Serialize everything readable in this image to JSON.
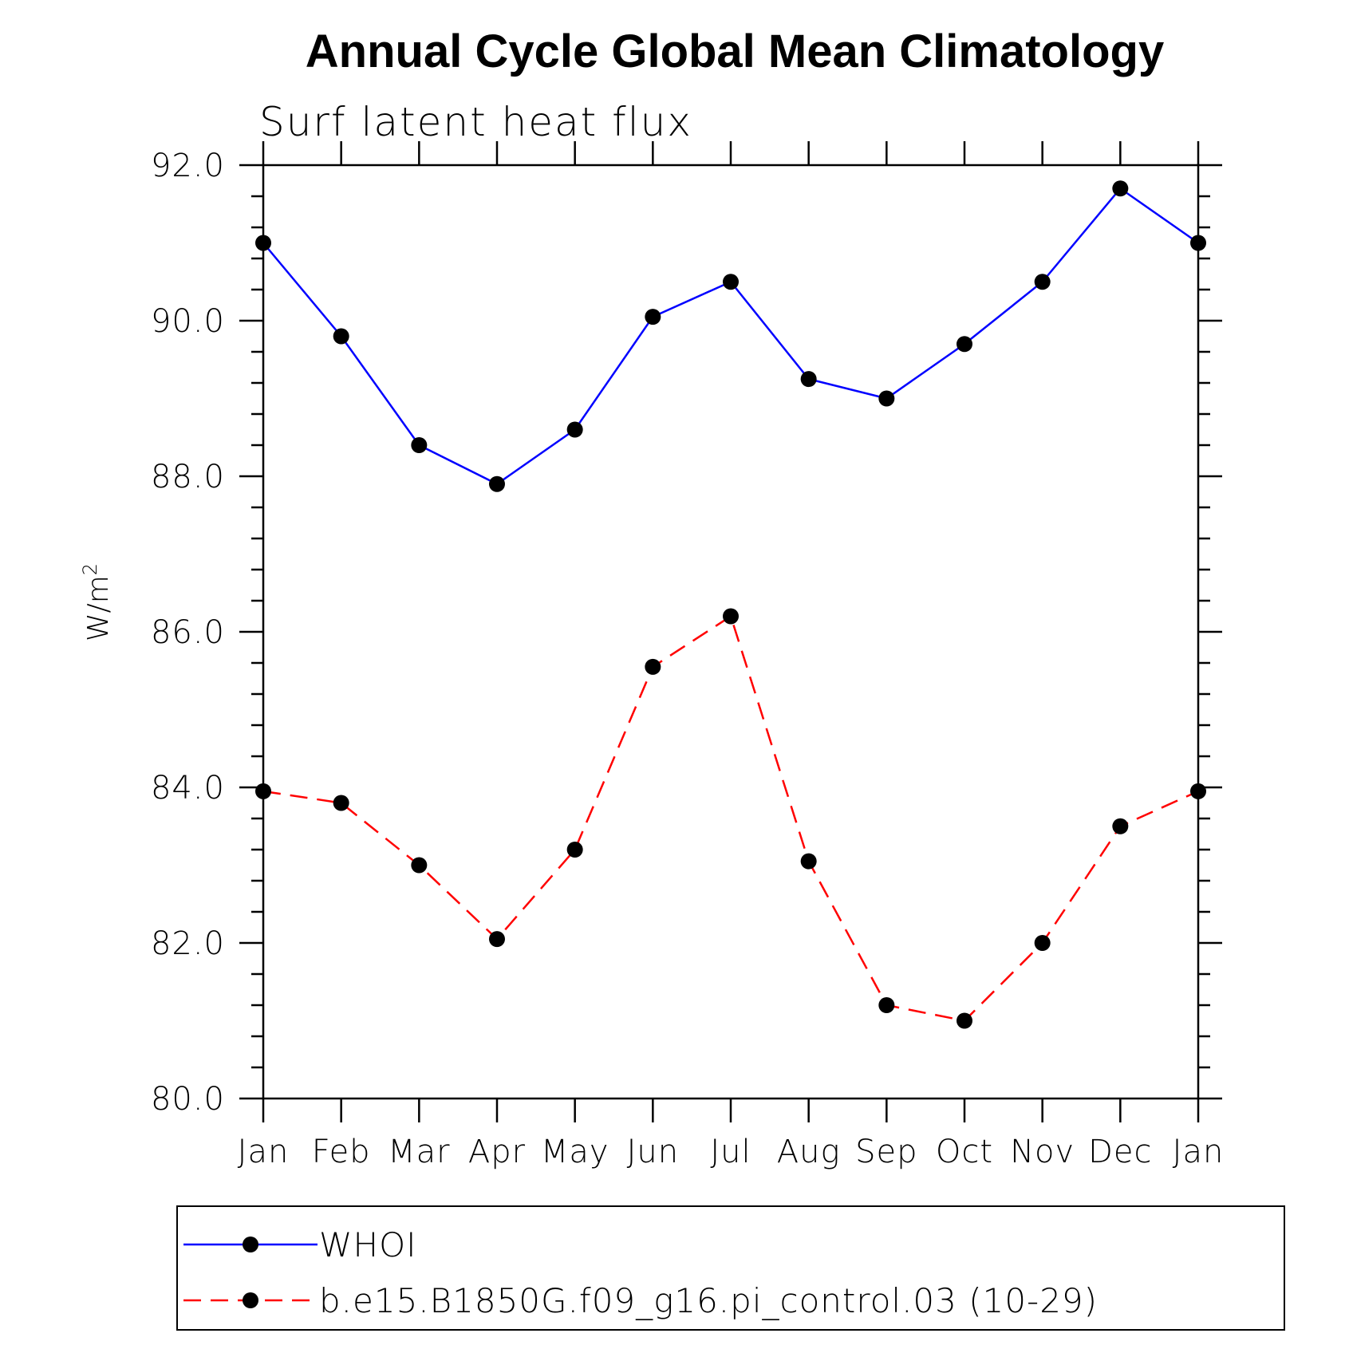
{
  "chart_data": {
    "type": "line",
    "title": "Annual Cycle Global Mean Climatology",
    "subtitle": "Surf latent heat flux",
    "ylabel": "W/m",
    "ylabel_superscript": "2",
    "xlabel": "",
    "categories": [
      "Jan",
      "Feb",
      "Mar",
      "Apr",
      "May",
      "Jun",
      "Jul",
      "Aug",
      "Sep",
      "Oct",
      "Nov",
      "Dec",
      "Jan"
    ],
    "ylim": [
      80.0,
      92.0
    ],
    "yticks": [
      "80.0",
      "82.0",
      "84.0",
      "86.0",
      "88.0",
      "90.0",
      "92.0"
    ],
    "yticks_values": [
      80,
      82,
      84,
      86,
      88,
      90,
      92
    ],
    "minor_ticks_per_interval": 4,
    "grid": false,
    "legend_position": "bottom",
    "series": [
      {
        "name": "WHOI",
        "color": "#0000ff",
        "line_style": "solid",
        "marker": "filled-circle",
        "values": [
          91.0,
          89.8,
          88.4,
          87.9,
          88.6,
          90.05,
          90.5,
          89.25,
          89.0,
          89.7,
          90.5,
          91.7,
          91.0
        ]
      },
      {
        "name": "b.e15.B1850G.f09_g16.pi_control.03 (10-29)",
        "color": "#ff0000",
        "line_style": "dashed",
        "marker": "filled-circle",
        "values": [
          83.95,
          83.8,
          83.0,
          82.05,
          83.2,
          85.55,
          86.2,
          83.05,
          81.2,
          81.0,
          82.0,
          83.5,
          83.95
        ]
      }
    ]
  }
}
